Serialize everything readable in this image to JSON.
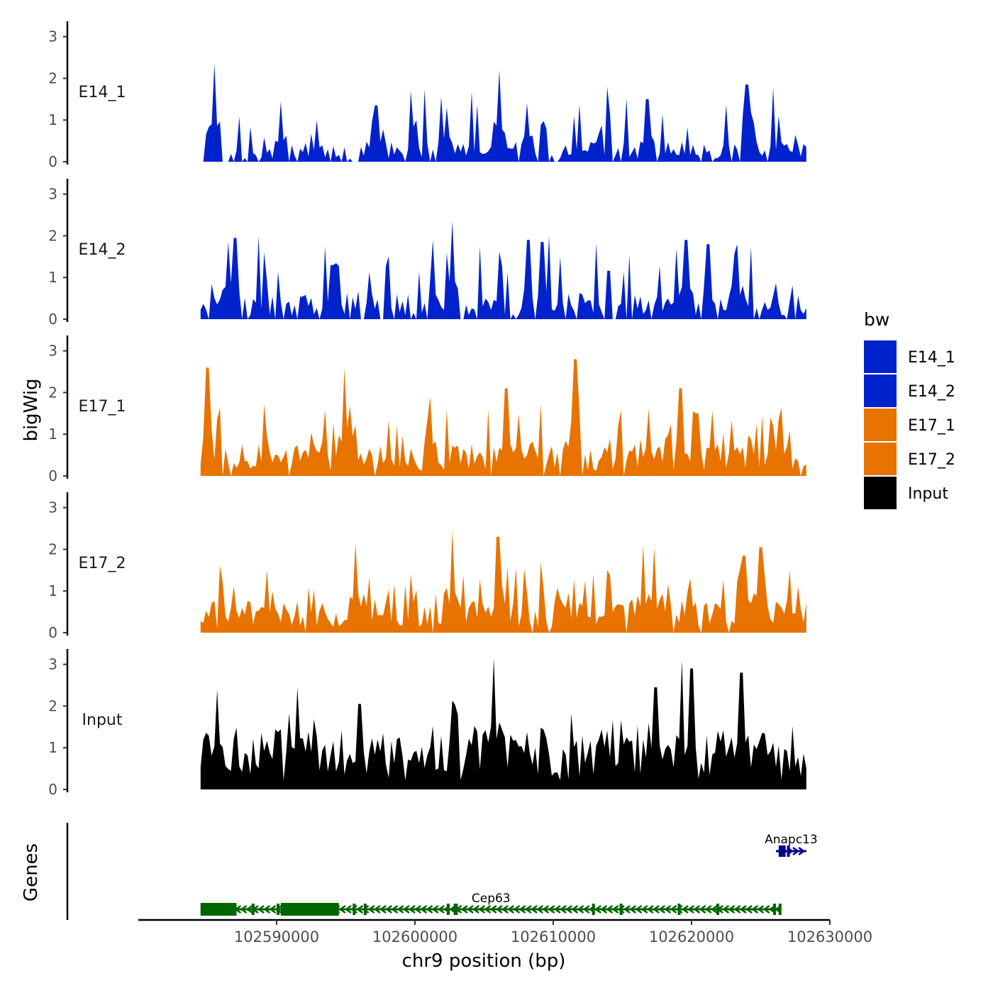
{
  "chart_data": {
    "type": "area",
    "chromosome": "chr9",
    "xlabel": "chr9 position (bp)",
    "ylabel_tracks": "bigWig",
    "ylabel_genes": "Genes",
    "xlim": [
      102580000,
      102630000
    ],
    "x_ticks": [
      {
        "value": 102590000,
        "label": "102590000"
      },
      {
        "value": 102600000,
        "label": "102600000"
      },
      {
        "value": 102610000,
        "label": "102610000"
      },
      {
        "value": 102620000,
        "label": "102620000"
      },
      {
        "value": 102630000,
        "label": "102630000"
      }
    ],
    "ylim": [
      0,
      3.3
    ],
    "y_ticks": [
      0,
      1,
      2,
      3
    ],
    "data_range": [
      102584500,
      102628300
    ],
    "bin_size": 200,
    "legend": {
      "title": "bw",
      "entries": [
        {
          "label": "E14_1",
          "color": "#0022cc"
        },
        {
          "label": "E14_2",
          "color": "#0022cc"
        },
        {
          "label": "E17_1",
          "color": "#e87300"
        },
        {
          "label": "E17_2",
          "color": "#e87300"
        },
        {
          "label": "Input",
          "color": "#000000"
        }
      ]
    },
    "series": [
      {
        "name": "E14_1",
        "color": "#0022cc",
        "seed": 11,
        "base": 0.35,
        "spikiness": 0.85,
        "gap_rate": 0.18,
        "peaks": [
          {
            "x": 102585500,
            "y": 2.35
          },
          {
            "x": 102590300,
            "y": 1.45
          },
          {
            "x": 102597200,
            "y": 1.35
          },
          {
            "x": 102602300,
            "y": 1.3
          },
          {
            "x": 102606100,
            "y": 2.2
          },
          {
            "x": 102608100,
            "y": 1.4
          },
          {
            "x": 102616800,
            "y": 1.5
          },
          {
            "x": 102624000,
            "y": 1.85
          },
          {
            "x": 102626300,
            "y": 1.1
          }
        ]
      },
      {
        "name": "E14_2",
        "color": "#0022cc",
        "seed": 23,
        "base": 0.45,
        "spikiness": 0.9,
        "gap_rate": 0.14,
        "peaks": [
          {
            "x": 102586500,
            "y": 1.85
          },
          {
            "x": 102587000,
            "y": 1.95
          },
          {
            "x": 102594000,
            "y": 1.3
          },
          {
            "x": 102602700,
            "y": 2.35
          },
          {
            "x": 102608200,
            "y": 1.9
          },
          {
            "x": 102609200,
            "y": 1.85
          },
          {
            "x": 102619600,
            "y": 1.9
          },
          {
            "x": 102621200,
            "y": 1.8
          },
          {
            "x": 102623300,
            "y": 1.8
          }
        ]
      },
      {
        "name": "E17_1",
        "color": "#e87300",
        "seed": 37,
        "base": 0.55,
        "spikiness": 0.7,
        "gap_rate": 0.04,
        "peaks": [
          {
            "x": 102585000,
            "y": 2.6
          },
          {
            "x": 102594900,
            "y": 2.6
          },
          {
            "x": 102601100,
            "y": 1.9
          },
          {
            "x": 102606600,
            "y": 2.1
          },
          {
            "x": 102611600,
            "y": 2.8
          },
          {
            "x": 102619200,
            "y": 2.1
          },
          {
            "x": 102620400,
            "y": 1.5
          },
          {
            "x": 102625800,
            "y": 1.2
          }
        ]
      },
      {
        "name": "E17_2",
        "color": "#e87300",
        "seed": 41,
        "base": 0.55,
        "spikiness": 0.7,
        "gap_rate": 0.05,
        "peaks": [
          {
            "x": 102595700,
            "y": 2.15
          },
          {
            "x": 102602700,
            "y": 2.45
          },
          {
            "x": 102606000,
            "y": 2.3
          },
          {
            "x": 102616500,
            "y": 2.1
          },
          {
            "x": 102617300,
            "y": 2.05
          },
          {
            "x": 102623800,
            "y": 1.85
          },
          {
            "x": 102625000,
            "y": 2.05
          }
        ]
      },
      {
        "name": "Input",
        "color": "#000000",
        "seed": 57,
        "base": 1.05,
        "spikiness": 0.55,
        "gap_rate": 0.0,
        "peaks": [
          {
            "x": 102585700,
            "y": 2.4
          },
          {
            "x": 102591500,
            "y": 2.45
          },
          {
            "x": 102596000,
            "y": 2.05
          },
          {
            "x": 102605700,
            "y": 3.15
          },
          {
            "x": 102619300,
            "y": 3.1
          },
          {
            "x": 102620000,
            "y": 2.9
          },
          {
            "x": 102623600,
            "y": 2.8
          },
          {
            "x": 102617400,
            "y": 2.45
          }
        ]
      }
    ],
    "genes": [
      {
        "name": "Cep63",
        "color": "#006400",
        "strand": "-",
        "start": 102584500,
        "end": 102626500,
        "exons": [
          [
            102584500,
            102587100
          ],
          [
            102590300,
            102594500
          ],
          [
            102588200,
            102588400
          ],
          [
            102590000,
            102590200
          ],
          [
            102595500,
            102595700
          ],
          [
            102596300,
            102596500
          ],
          [
            102602300,
            102602500
          ],
          [
            102602800,
            102603100
          ],
          [
            102612800,
            102613000
          ],
          [
            102614800,
            102615000
          ],
          [
            102619000,
            102619200
          ],
          [
            102621800,
            102622000
          ],
          [
            102625900,
            102626100
          ],
          [
            102626300,
            102626500
          ]
        ]
      },
      {
        "name": "Anapc13",
        "color": "#00008b",
        "strand": "+",
        "start": 102626100,
        "end": 102628300,
        "exons": [
          [
            102626300,
            102626800
          ],
          [
            102626900,
            102627000
          ]
        ]
      }
    ]
  }
}
